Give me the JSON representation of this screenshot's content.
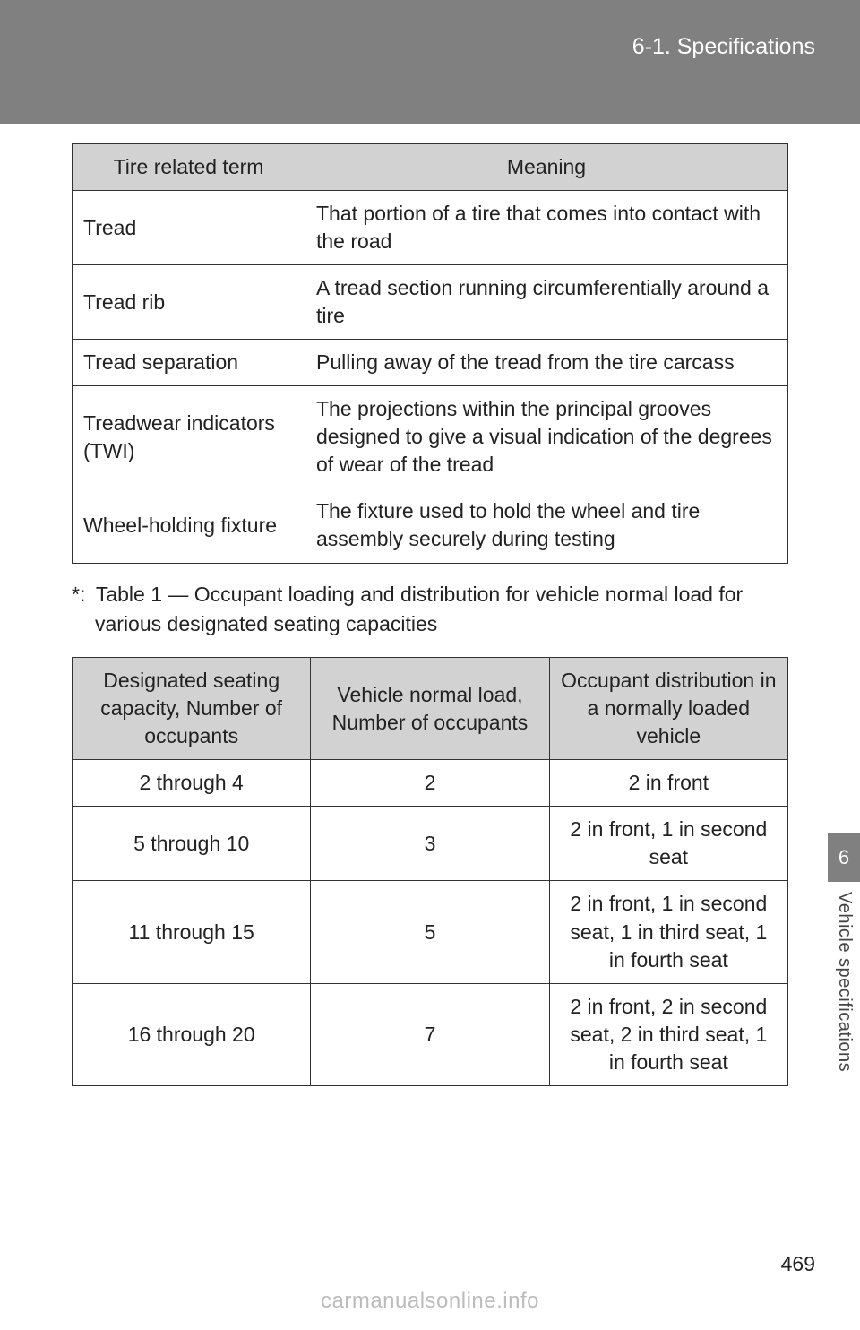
{
  "header": {
    "section": "6-1. Specifications"
  },
  "table1": {
    "headers": [
      "Tire related term",
      "Meaning"
    ],
    "rows": [
      [
        "Tread",
        "That portion of a tire that comes into contact with the road"
      ],
      [
        "Tread rib",
        "A tread section running circumferentially around a tire"
      ],
      [
        "Tread separation",
        "Pulling away of the tread from the tire carcass"
      ],
      [
        "Treadwear indicators (TWI)",
        "The projections within the principal grooves designed to give a visual indication of the degrees of wear of the tread"
      ],
      [
        "Wheel-holding fixture",
        "The fixture used to hold the wheel and tire assembly securely during testing"
      ]
    ]
  },
  "footnote": "*: Table 1 — Occupant loading and distribution for vehicle normal load for various designated seating capacities",
  "table2": {
    "headers": [
      "Designated seating capacity, Number of occupants",
      "Vehicle normal load, Number of occupants",
      "Occupant distribution in a normally loaded vehicle"
    ],
    "rows": [
      [
        "2 through 4",
        "2",
        "2 in front"
      ],
      [
        "5 through 10",
        "3",
        "2 in front, 1 in second seat"
      ],
      [
        "11 through 15",
        "5",
        "2 in front, 1 in second seat, 1 in third seat, 1 in fourth seat"
      ],
      [
        "16 through 20",
        "7",
        "2 in front, 2 in second seat, 2 in third seat, 1 in fourth seat"
      ]
    ]
  },
  "side": {
    "chapter": "6",
    "label": "Vehicle specifications"
  },
  "page_number": "469",
  "watermark": "carmanualsonline.info",
  "colors": {
    "header_bg": "#808080",
    "th_bg": "#d2d2d2",
    "border": "#333333",
    "text": "#222222",
    "watermark": "#bcbcbc"
  }
}
